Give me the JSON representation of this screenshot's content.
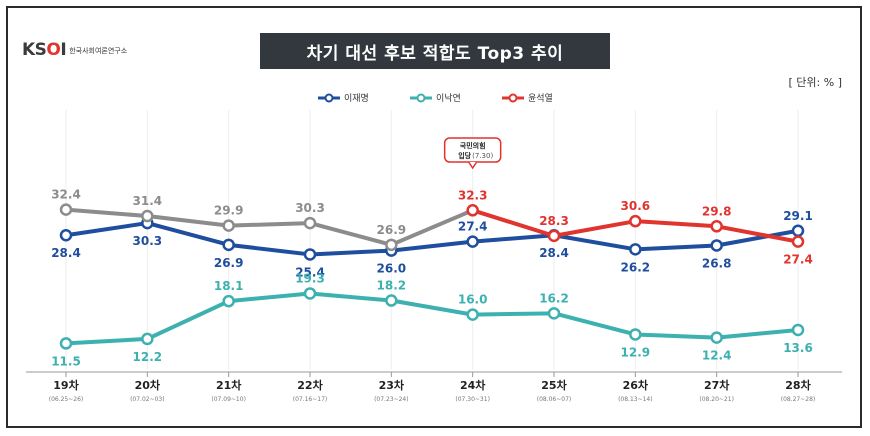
{
  "logo": {
    "wordmark_prefix": "KS",
    "wordmark_o": "O",
    "wordmark_suffix": "I",
    "subtitle": "한국사회여론연구소"
  },
  "title": "차기 대선 후보 적합도 Top3 추이",
  "unit": "[ 단위: % ]",
  "annotation": {
    "line1": "국민의힘",
    "line2": "입당",
    "date": "(7.30)"
  },
  "chart_data": {
    "type": "line",
    "categories": [
      "19차",
      "20차",
      "21차",
      "22차",
      "23차",
      "24차",
      "25차",
      "26차",
      "27차",
      "28차"
    ],
    "date_ranges": [
      "(06.25~26)",
      "(07.02~03)",
      "(07.09~10)",
      "(07.16~17)",
      "(07.23~24)",
      "(07.30~31)",
      "(08.06~07)",
      "(08.13~14)",
      "(08.20~21)",
      "(08.27~28)"
    ],
    "series": [
      {
        "name": "이재명",
        "color": "#1f4e9e",
        "values": [
          28.4,
          30.3,
          26.9,
          25.4,
          26.0,
          27.4,
          28.4,
          26.2,
          26.8,
          29.1
        ]
      },
      {
        "name": "이낙연",
        "color": "#3db0b0",
        "values": [
          11.5,
          12.2,
          18.1,
          19.3,
          18.2,
          16.0,
          16.2,
          12.9,
          12.4,
          13.6
        ]
      },
      {
        "name": "윤석열",
        "color": "#e0342f",
        "pre_color": "#8c8c8c",
        "color_from_index": 5,
        "values": [
          32.4,
          31.4,
          29.9,
          30.3,
          26.9,
          32.3,
          28.3,
          30.6,
          29.8,
          27.4
        ]
      }
    ],
    "legend_placement": "top-center",
    "grid": false
  }
}
